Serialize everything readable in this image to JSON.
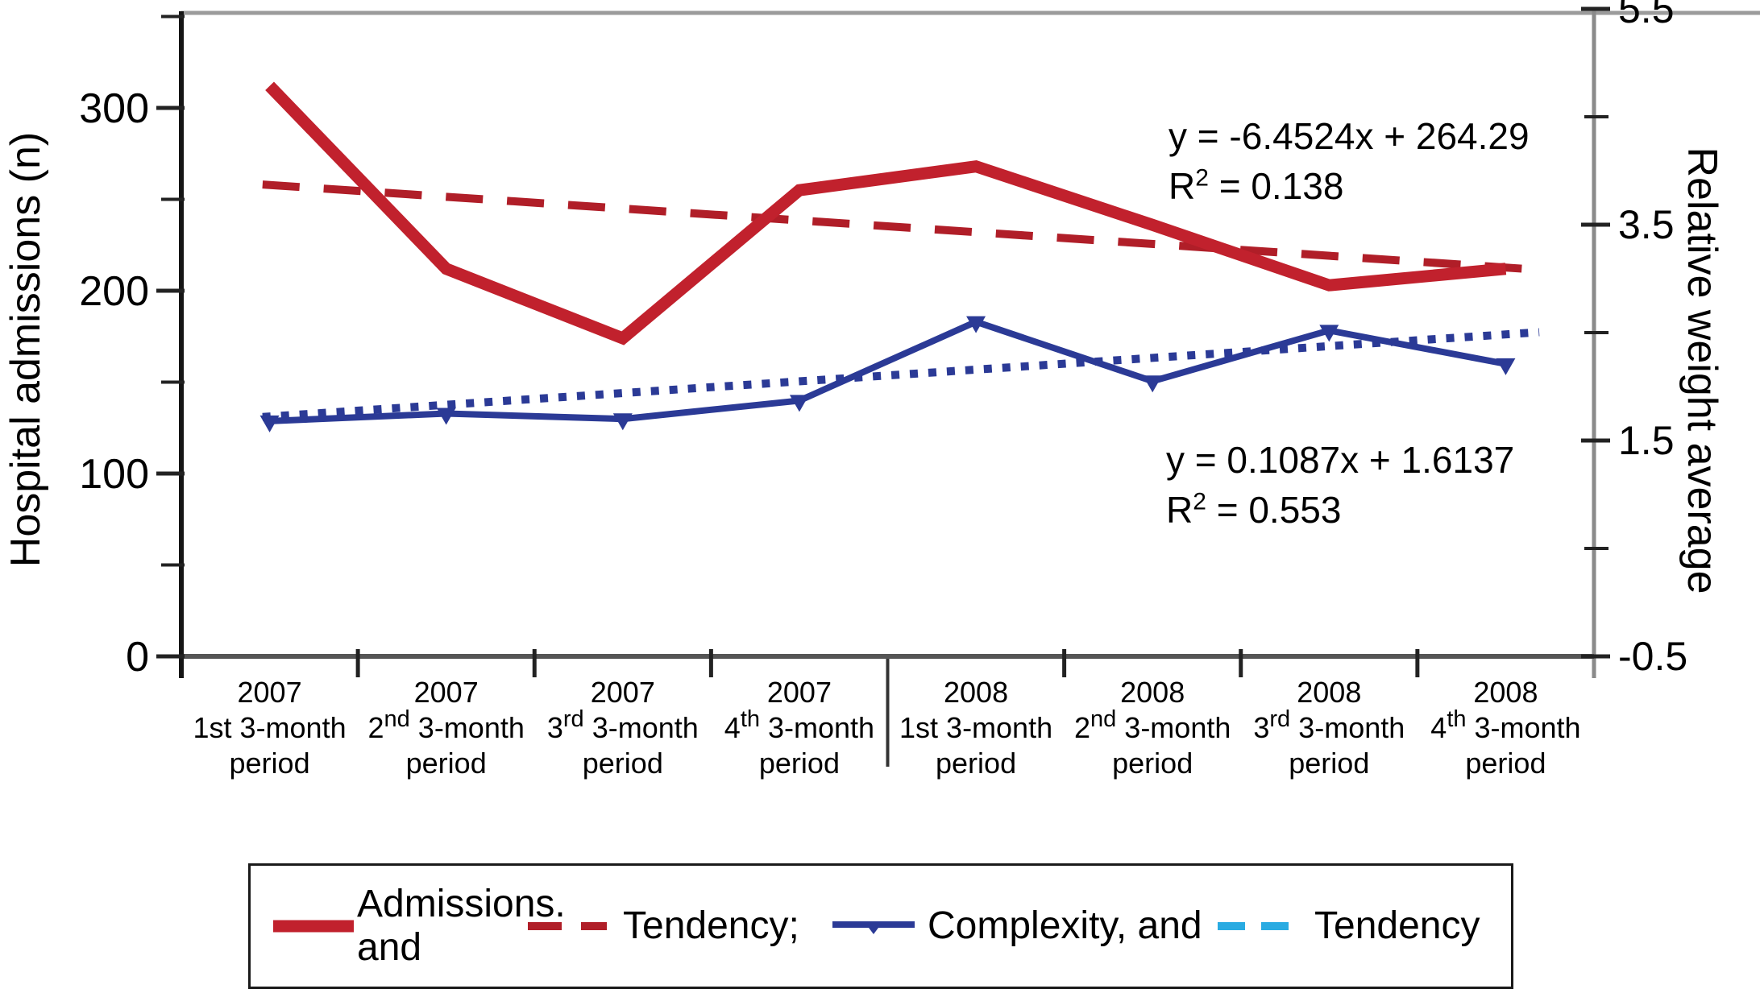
{
  "chart_data": {
    "type": "line",
    "title": "",
    "categories": [
      "2007 1st 3-month period",
      "2007 2nd 3-month period",
      "2007 3rd 3-month period",
      "2007 4th 3-month period",
      "2008 1st 3-month period",
      "2008 2nd 3-month period",
      "2008 3rd 3-month period",
      "2008 4th 3-month period"
    ],
    "x_labels_parts": [
      {
        "year": "2007",
        "num": "1st",
        "sup": "",
        "rest": " 3-month",
        "period": "period"
      },
      {
        "year": "2007",
        "num": "2",
        "sup": "nd",
        "rest": " 3-month",
        "period": "period"
      },
      {
        "year": "2007",
        "num": "3",
        "sup": "rd",
        "rest": " 3-month",
        "period": "period"
      },
      {
        "year": "2007",
        "num": "4",
        "sup": "th",
        "rest": " 3-month",
        "period": "period"
      },
      {
        "year": "2008",
        "num": "1st",
        "sup": "",
        "rest": " 3-month",
        "period": "period"
      },
      {
        "year": "2008",
        "num": "2",
        "sup": "nd",
        "rest": " 3-month",
        "period": "period"
      },
      {
        "year": "2008",
        "num": "3",
        "sup": "rd",
        "rest": " 3-month",
        "period": "period"
      },
      {
        "year": "2008",
        "num": "4",
        "sup": "th",
        "rest": " 3-month",
        "period": "period"
      }
    ],
    "series": [
      {
        "name": "Admissions",
        "axis": "left",
        "style": "solid-thick",
        "color": "#C1212D",
        "values": [
          312,
          212,
          174,
          255,
          268,
          236,
          203,
          212
        ]
      },
      {
        "name": "Admissions tendency",
        "axis": "left",
        "style": "dashed",
        "color": "#B01E28",
        "slope": -6.4524,
        "intercept": 264.29,
        "equation": "y = -6.4524x + 264.29",
        "r2": 0.138
      },
      {
        "name": "Complexity",
        "axis": "right",
        "style": "solid-markers",
        "color": "#2B3A96",
        "values": [
          1.68,
          1.75,
          1.7,
          1.87,
          2.6,
          2.05,
          2.52,
          2.21
        ]
      },
      {
        "name": "Complexity tendency",
        "axis": "right",
        "style": "dotted",
        "color": "#2B3A96",
        "slope": 0.1087,
        "intercept": 1.6137,
        "equation": "y = 0.1087x + 1.6137",
        "r2": 0.553
      }
    ],
    "left_axis": {
      "label": "Hospital admissions (n)",
      "tick_labels": [
        "0",
        "100",
        "200",
        "300"
      ],
      "tick_values": [
        0,
        100,
        200,
        300
      ],
      "minor_tick_values": [
        50,
        150,
        250,
        350
      ],
      "range": [
        0,
        351
      ]
    },
    "right_axis": {
      "label": "Relative weight average",
      "tick_labels": [
        "5.5",
        "3.5",
        "1.5",
        "-0.5"
      ],
      "tick_values": [
        5.5,
        3.5,
        1.5,
        -0.5
      ],
      "minor_tick_values": [
        4.5,
        2.5,
        0.5
      ],
      "range": [
        -0.5,
        5.5
      ]
    },
    "year_separator_after_category": 4,
    "grid": false,
    "legend_position": "bottom"
  },
  "annotations": {
    "admissions": {
      "equation": "y = -6.4524x + 264.29",
      "r_base": "R",
      "r_exp": "2",
      "r_rest": " = 0.138"
    },
    "complexity": {
      "equation": "y = 0.1087x + 1.6137",
      "r_base": "R",
      "r_exp": "2",
      "r_rest": " = 0.553"
    }
  },
  "legend": {
    "items": [
      {
        "label_lines": [
          "Admissions.",
          "and"
        ],
        "swatch": "thick-solid-line",
        "color": "#C1212D"
      },
      {
        "label_lines": [
          "Tendency;"
        ],
        "swatch": "dashed-line",
        "color": "#B01E28"
      },
      {
        "label_lines": [
          "Complexity, and"
        ],
        "swatch": "line-with-marker",
        "color": "#2B3A96"
      },
      {
        "label_lines": [
          "Tendency"
        ],
        "swatch": "dashed-line",
        "color": "#29ABE2"
      }
    ]
  },
  "colors": {
    "admissions_red": "#C1212D",
    "tendency_red": "#B01E28",
    "complexity_blue": "#2B3A96",
    "tendency_cyan": "#29ABE2",
    "frame_gray": "#9b9b9b",
    "right_axis_gray": "#8a8a8a",
    "bottom_axis_gray": "#555555",
    "left_axis_black": "#151515",
    "tick_black": "#222222"
  }
}
